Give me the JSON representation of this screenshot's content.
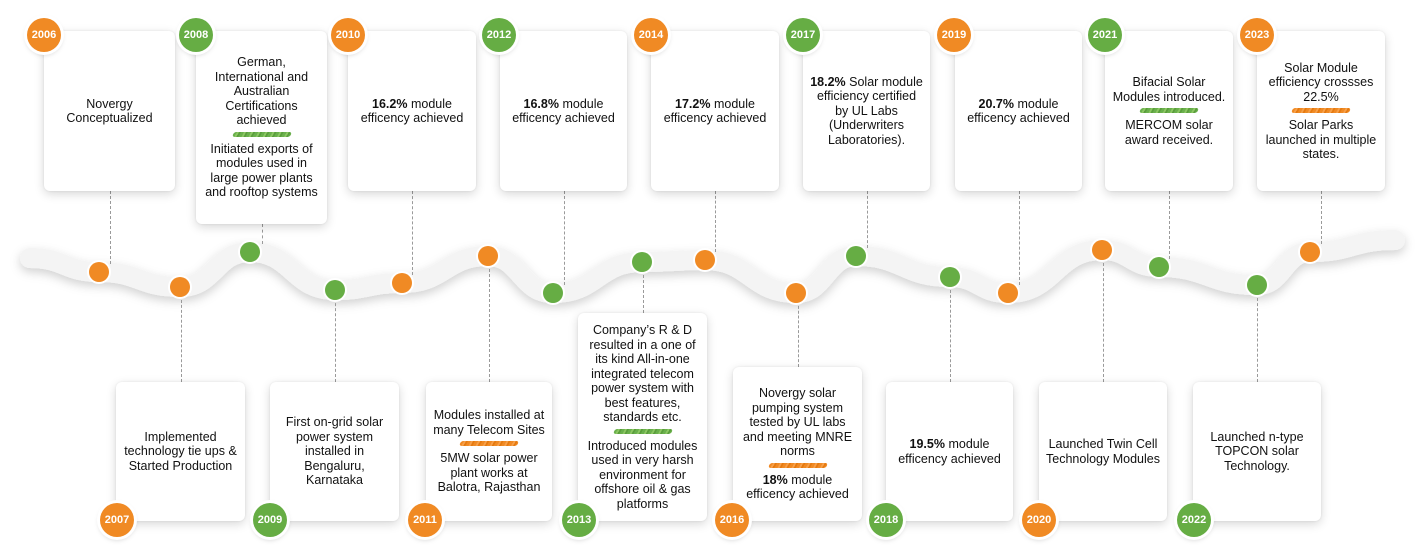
{
  "colors": {
    "orange": "#f08a24",
    "green": "#66ad44",
    "wave": "#f2f2f2"
  },
  "events": [
    {
      "year": "2006",
      "badge_color": "orange",
      "lines": [
        {
          "text": "Novergy Conceptualized"
        }
      ]
    },
    {
      "year": "2007",
      "badge_color": "orange",
      "lines": [
        {
          "text": "Implemented technology tie ups & Started Production"
        }
      ]
    },
    {
      "year": "2008",
      "badge_color": "green",
      "lines": [
        {
          "text": "German, International and Australian Certifications achieved"
        },
        {
          "text": "Initiated exports of modules used in large power plants and rooftop systems"
        }
      ]
    },
    {
      "year": "2009",
      "badge_color": "green",
      "lines": [
        {
          "text": "First on-grid solar power system installed in Bengaluru, Karnataka"
        }
      ]
    },
    {
      "year": "2010",
      "badge_color": "orange",
      "lines": [
        {
          "bold": "16.2%",
          "text": "module efficency achieved"
        }
      ]
    },
    {
      "year": "2011",
      "badge_color": "orange",
      "lines": [
        {
          "text": "Modules installed at many Telecom Sites"
        },
        {
          "text": "5MW solar power plant works at Balotra, Rajasthan"
        }
      ]
    },
    {
      "year": "2012",
      "badge_color": "green",
      "lines": [
        {
          "bold": "16.8%",
          "text": "module efficency achieved"
        }
      ]
    },
    {
      "year": "2013",
      "badge_color": "green",
      "lines": [
        {
          "text": "Company’s R & D resulted in a one of its kind All-in-one integrated telecom power system with best features, standards etc."
        },
        {
          "text": "Introduced modules used in very harsh environment for offshore oil & gas platforms"
        }
      ]
    },
    {
      "year": "2014",
      "badge_color": "orange",
      "lines": [
        {
          "bold": "17.2%",
          "text": "module efficency achieved"
        }
      ]
    },
    {
      "year": "2016",
      "badge_color": "orange",
      "lines": [
        {
          "text": "Novergy solar pumping system tested by UL labs and meeting MNRE norms"
        },
        {
          "bold": "18%",
          "text": "module efficency achieved"
        }
      ]
    },
    {
      "year": "2017",
      "badge_color": "green",
      "lines": [
        {
          "bold": "18.2%",
          "text": "Solar module efficiency certified by UL Labs (Underwriters Laboratories)."
        }
      ]
    },
    {
      "year": "2018",
      "badge_color": "green",
      "lines": [
        {
          "bold": "19.5%",
          "text": "module efficency achieved"
        }
      ]
    },
    {
      "year": "2019",
      "badge_color": "orange",
      "lines": [
        {
          "bold": "20.7%",
          "text": "module efficency achieved"
        }
      ]
    },
    {
      "year": "2020",
      "badge_color": "orange",
      "lines": [
        {
          "text": "Launched Twin Cell Technology Modules"
        }
      ]
    },
    {
      "year": "2021",
      "badge_color": "green",
      "lines": [
        {
          "text": "Bifacial Solar Modules introduced."
        },
        {
          "text": "MERCOM solar award received."
        }
      ]
    },
    {
      "year": "2022",
      "badge_color": "green",
      "lines": [
        {
          "text": "Launched n-type TOPCON solar Technology."
        }
      ]
    },
    {
      "year": "2023",
      "badge_color": "orange",
      "lines": [
        {
          "text": "Solar Module efficiency crossses 22.5%"
        },
        {
          "text": "Solar Parks launched in multiple states."
        }
      ]
    }
  ]
}
